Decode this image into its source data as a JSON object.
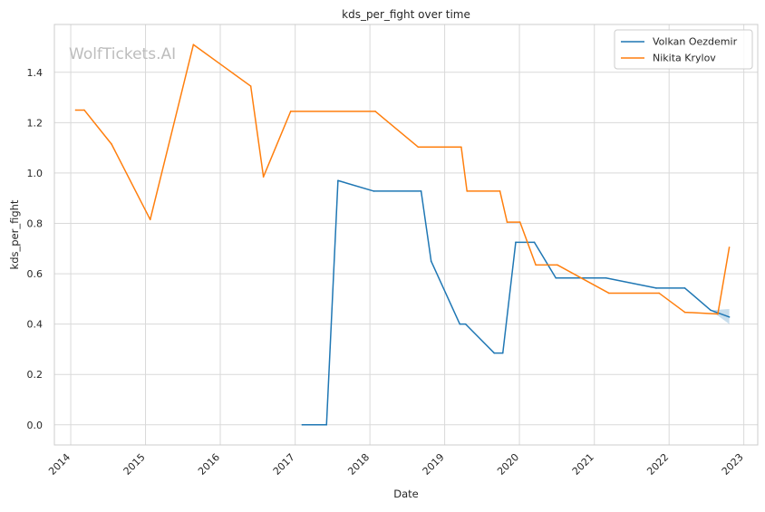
{
  "watermark": "WolfTickets.AI",
  "chart_data": {
    "type": "line",
    "title": "kds_per_fight over time",
    "xlabel": "Date",
    "ylabel": "kds_per_fight",
    "x_ticks": [
      "2014",
      "2015",
      "2016",
      "2017",
      "2018",
      "2019",
      "2020",
      "2021",
      "2022",
      "2023"
    ],
    "y_ticks": [
      "0.0",
      "0.2",
      "0.4",
      "0.6",
      "0.8",
      "1.0",
      "1.2",
      "1.4"
    ],
    "xlim": [
      "2013-10-13",
      "2023-03-10"
    ],
    "ylim": [
      -0.08,
      1.59
    ],
    "grid": true,
    "legend_position": "top-right",
    "series": [
      {
        "name": "Volkan Oezdemir",
        "color": "#1f77b4",
        "points": [
          [
            "2017-02-04",
            0.0
          ],
          [
            "2017-06-03",
            0.0
          ],
          [
            "2017-07-29",
            0.97
          ],
          [
            "2018-01-20",
            0.928
          ],
          [
            "2018-09-08",
            0.928
          ],
          [
            "2018-10-27",
            0.65
          ],
          [
            "2019-03-16",
            0.4
          ],
          [
            "2019-04-13",
            0.4
          ],
          [
            "2019-08-31",
            0.285
          ],
          [
            "2019-10-12",
            0.285
          ],
          [
            "2019-12-14",
            0.725
          ],
          [
            "2020-03-14",
            0.725
          ],
          [
            "2020-06-27",
            0.583
          ],
          [
            "2021-02-27",
            0.583
          ],
          [
            "2021-10-30",
            0.543
          ],
          [
            "2022-03-19",
            0.543
          ],
          [
            "2022-07-23",
            0.455
          ],
          [
            "2022-10-22",
            0.428
          ]
        ],
        "band": {
          "start": "2022-07-23",
          "upper": [
            0.455,
            0.46
          ],
          "lower": [
            0.455,
            0.4
          ]
        }
      },
      {
        "name": "Nikita Krylov",
        "color": "#ff7f0e",
        "points": [
          [
            "2014-01-25",
            1.25
          ],
          [
            "2014-03-08",
            1.25
          ],
          [
            "2014-07-19",
            1.115
          ],
          [
            "2015-01-24",
            0.815
          ],
          [
            "2015-08-23",
            1.51
          ],
          [
            "2016-05-29",
            1.345
          ],
          [
            "2016-07-30",
            0.985
          ],
          [
            "2016-12-10",
            1.245
          ],
          [
            "2018-01-27",
            1.245
          ],
          [
            "2018-08-25",
            1.103
          ],
          [
            "2019-03-23",
            1.103
          ],
          [
            "2019-04-20",
            0.928
          ],
          [
            "2019-09-28",
            0.928
          ],
          [
            "2019-11-02",
            0.805
          ],
          [
            "2020-01-04",
            0.805
          ],
          [
            "2020-03-21",
            0.635
          ],
          [
            "2020-07-04",
            0.635
          ],
          [
            "2021-03-13",
            0.523
          ],
          [
            "2021-11-13",
            0.523
          ],
          [
            "2022-03-19",
            0.447
          ],
          [
            "2022-08-27",
            0.44
          ],
          [
            "2022-10-22",
            0.705
          ]
        ]
      }
    ]
  }
}
